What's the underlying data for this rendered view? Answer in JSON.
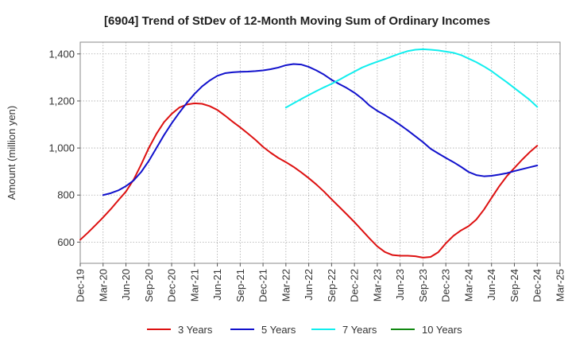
{
  "chart_data": {
    "type": "line",
    "title": "[6904]  Trend of StDev of 12-Month Moving Sum of Ordinary Incomes",
    "ylabel": "Amount (million yen)",
    "xlabel": "",
    "ylim": [
      510,
      1450
    ],
    "yticks": [
      600,
      800,
      1000,
      1200,
      1400
    ],
    "ytick_labels": [
      "600",
      "800",
      "1,000",
      "1,200",
      "1,400"
    ],
    "xticks": [
      "Dec-19",
      "Mar-20",
      "Jun-20",
      "Sep-20",
      "Dec-20",
      "Mar-21",
      "Jun-21",
      "Sep-21",
      "Dec-21",
      "Mar-22",
      "Jun-22",
      "Sep-22",
      "Dec-22",
      "Mar-23",
      "Jun-23",
      "Sep-23",
      "Dec-23",
      "Mar-24",
      "Jun-24",
      "Sep-24",
      "Dec-24",
      "Mar-25"
    ],
    "grid": true,
    "legend_position": "bottom",
    "series": [
      {
        "name": "3 Years",
        "color": "#dd1111",
        "x": [
          "Dec-19",
          "Jan-20",
          "Feb-20",
          "Mar-20",
          "Apr-20",
          "May-20",
          "Jun-20",
          "Jul-20",
          "Aug-20",
          "Sep-20",
          "Oct-20",
          "Nov-20",
          "Dec-20",
          "Jan-21",
          "Feb-21",
          "Mar-21",
          "Apr-21",
          "May-21",
          "Jun-21",
          "Jul-21",
          "Aug-21",
          "Sep-21",
          "Oct-21",
          "Nov-21",
          "Dec-21",
          "Jan-22",
          "Feb-22",
          "Mar-22",
          "Apr-22",
          "May-22",
          "Jun-22",
          "Jul-22",
          "Aug-22",
          "Sep-22",
          "Oct-22",
          "Nov-22",
          "Dec-22",
          "Jan-23",
          "Feb-23",
          "Mar-23",
          "Apr-23",
          "May-23",
          "Jun-23",
          "Jul-23",
          "Aug-23",
          "Sep-23",
          "Oct-23",
          "Nov-23",
          "Dec-23",
          "Jan-24",
          "Feb-24",
          "Mar-24",
          "Apr-24",
          "May-24",
          "Jun-24",
          "Jul-24",
          "Aug-24",
          "Sep-24",
          "Oct-24",
          "Nov-24",
          "Dec-24"
        ],
        "values": [
          610,
          640,
          672,
          705,
          740,
          778,
          815,
          865,
          930,
          1000,
          1060,
          1110,
          1145,
          1172,
          1185,
          1190,
          1188,
          1178,
          1162,
          1138,
          1112,
          1088,
          1062,
          1035,
          1005,
          980,
          958,
          940,
          920,
          897,
          872,
          845,
          815,
          782,
          750,
          718,
          685,
          650,
          615,
          582,
          558,
          545,
          542,
          542,
          540,
          534,
          537,
          557,
          595,
          627,
          650,
          668,
          696,
          738,
          788,
          837,
          880,
          915,
          950,
          982,
          1010
        ]
      },
      {
        "name": "5 Years",
        "color": "#1111cc",
        "x": [
          "Mar-20",
          "Apr-20",
          "May-20",
          "Jun-20",
          "Jul-20",
          "Aug-20",
          "Sep-20",
          "Oct-20",
          "Nov-20",
          "Dec-20",
          "Jan-21",
          "Feb-21",
          "Mar-21",
          "Apr-21",
          "May-21",
          "Jun-21",
          "Jul-21",
          "Aug-21",
          "Sep-21",
          "Oct-21",
          "Nov-21",
          "Dec-21",
          "Jan-22",
          "Feb-22",
          "Mar-22",
          "Apr-22",
          "May-22",
          "Jun-22",
          "Jul-22",
          "Aug-22",
          "Sep-22",
          "Oct-22",
          "Nov-22",
          "Dec-22",
          "Jan-23",
          "Feb-23",
          "Mar-23",
          "Apr-23",
          "May-23",
          "Jun-23",
          "Jul-23",
          "Aug-23",
          "Sep-23",
          "Oct-23",
          "Nov-23",
          "Dec-23",
          "Jan-24",
          "Feb-24",
          "Mar-24",
          "Apr-24",
          "May-24",
          "Jun-24",
          "Jul-24",
          "Aug-24",
          "Sep-24",
          "Oct-24",
          "Nov-24",
          "Dec-24"
        ],
        "values": [
          800,
          808,
          820,
          838,
          862,
          898,
          945,
          1000,
          1055,
          1105,
          1150,
          1192,
          1230,
          1262,
          1287,
          1307,
          1318,
          1322,
          1324,
          1325,
          1327,
          1330,
          1335,
          1342,
          1352,
          1357,
          1355,
          1345,
          1330,
          1312,
          1290,
          1272,
          1255,
          1235,
          1210,
          1180,
          1158,
          1140,
          1120,
          1098,
          1075,
          1050,
          1025,
          997,
          977,
          958,
          940,
          920,
          898,
          885,
          880,
          882,
          887,
          893,
          902,
          910,
          918,
          926
        ]
      },
      {
        "name": "7 Years",
        "color": "#11eeee",
        "x": [
          "Mar-22",
          "Apr-22",
          "May-22",
          "Jun-22",
          "Jul-22",
          "Aug-22",
          "Sep-22",
          "Oct-22",
          "Nov-22",
          "Dec-22",
          "Jan-23",
          "Feb-23",
          "Mar-23",
          "Apr-23",
          "May-23",
          "Jun-23",
          "Jul-23",
          "Aug-23",
          "Sep-23",
          "Oct-23",
          "Nov-23",
          "Dec-23",
          "Jan-24",
          "Feb-24",
          "Mar-24",
          "Apr-24",
          "May-24",
          "Jun-24",
          "Jul-24",
          "Aug-24",
          "Sep-24",
          "Oct-24",
          "Nov-24",
          "Dec-24"
        ],
        "values": [
          1172,
          1190,
          1208,
          1225,
          1242,
          1258,
          1273,
          1290,
          1308,
          1325,
          1342,
          1355,
          1367,
          1378,
          1390,
          1402,
          1412,
          1418,
          1420,
          1418,
          1415,
          1410,
          1405,
          1395,
          1380,
          1365,
          1347,
          1327,
          1303,
          1280,
          1255,
          1230,
          1205,
          1175
        ]
      },
      {
        "name": "10 Years",
        "color": "#118811",
        "x": [],
        "values": []
      }
    ]
  }
}
